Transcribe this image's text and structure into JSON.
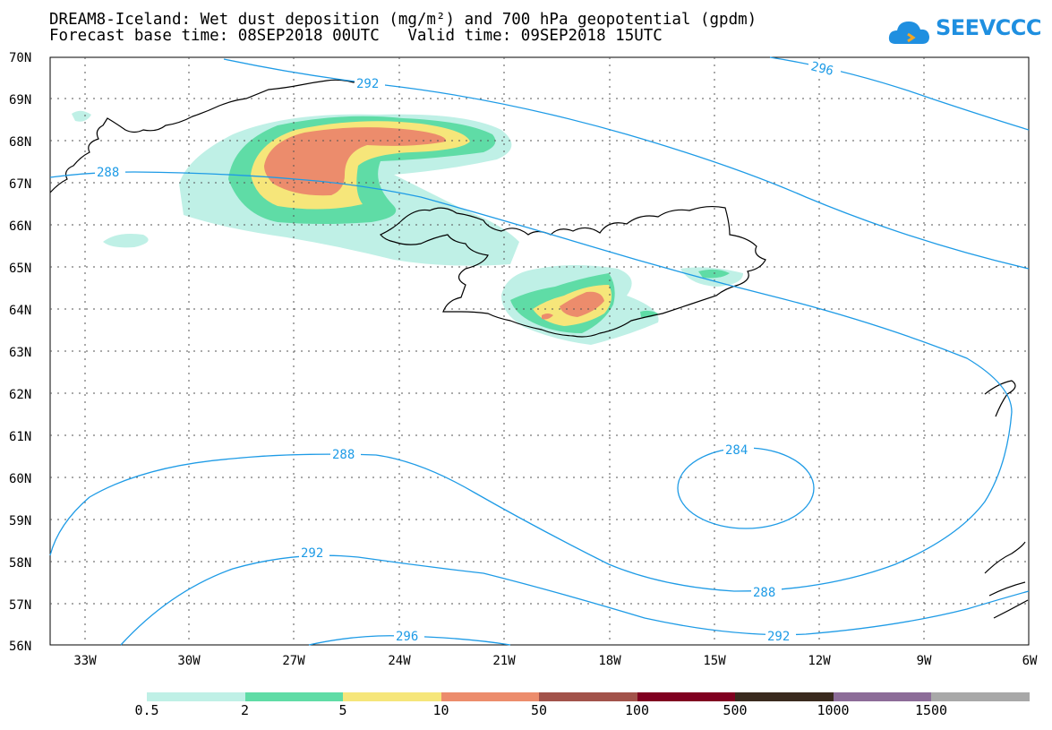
{
  "title": {
    "line1": "DREAM8-Iceland: Wet dust deposition (mg/m²) and 700 hPa geopotential (gpdm)",
    "line2": "Forecast base time: 08SEP2018 00UTC   Valid time: 09SEP2018 15UTC"
  },
  "logo": {
    "text": "SEEVCCC",
    "icon": "cloud-icon",
    "color": "#1f8fe0"
  },
  "map": {
    "lat_labels": [
      "70N",
      "69N",
      "68N",
      "67N",
      "66N",
      "65N",
      "64N",
      "63N",
      "62N",
      "61N",
      "60N",
      "59N",
      "58N",
      "57N",
      "56N"
    ],
    "lon_labels": [
      "33W",
      "30W",
      "27W",
      "24W",
      "21W",
      "18W",
      "15W",
      "12W",
      "9W",
      "6W"
    ],
    "grid": true,
    "contour_color": "#1e9be6",
    "contour_labels": {
      "a": "292",
      "b": "296",
      "c": "288",
      "d": "288",
      "e": "284",
      "f": "292",
      "g": "288",
      "h": "296",
      "i": "292"
    }
  },
  "colorbar": {
    "segments": [
      {
        "color": "#bff0e6"
      },
      {
        "color": "#5fdca6"
      },
      {
        "color": "#f6e67a"
      },
      {
        "color": "#ec8c6c"
      },
      {
        "color": "#a2524a"
      },
      {
        "color": "#800020"
      },
      {
        "color": "#3a2a1e"
      },
      {
        "color": "#8c6c98"
      },
      {
        "color": "#a8a8a8"
      }
    ],
    "labels": [
      "0.5",
      "2",
      "5",
      "10",
      "50",
      "100",
      "500",
      "1000",
      "1500"
    ]
  }
}
